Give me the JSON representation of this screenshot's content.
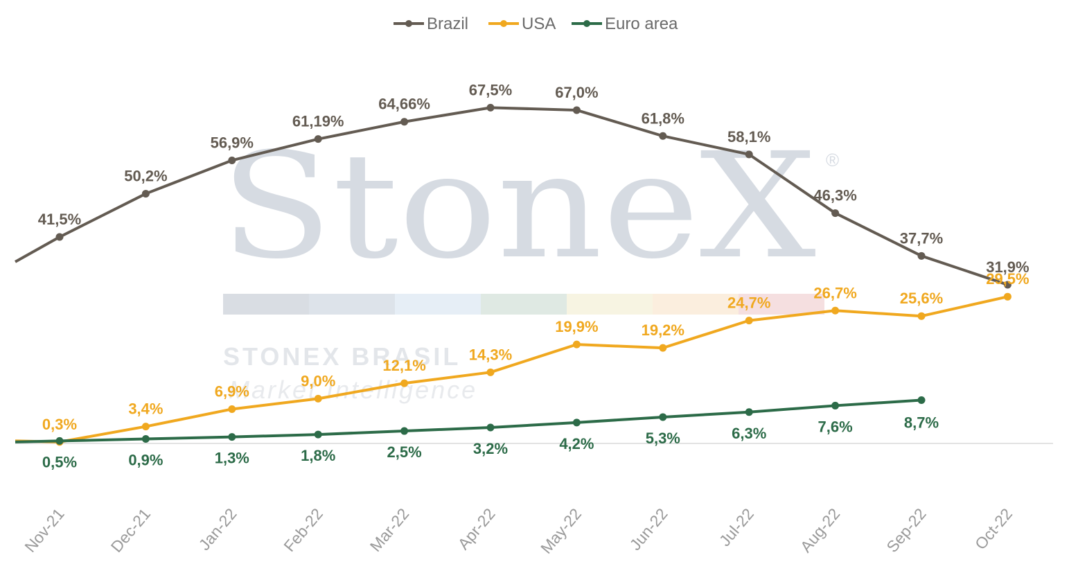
{
  "watermark": {
    "logo_text": "StoneX",
    "registered": "®",
    "line1": "STONEX BRASIL",
    "line2": "Market Intelligence",
    "band_colors": [
      "#d9dde3",
      "#dde3ea",
      "#e6eef6",
      "#dfe9e3",
      "#f7f4e2",
      "#fbeede",
      "#f5dfe0"
    ]
  },
  "chart_data": {
    "type": "line",
    "categories": [
      "Nov-21",
      "Dec-21",
      "Jan-22",
      "Feb-22",
      "Mar-22",
      "Apr-22",
      "May-22",
      "Jun-22",
      "Jul-22",
      "Aug-22",
      "Sep-22",
      "Oct-22"
    ],
    "legend_position": "top-center",
    "grid": false,
    "series": [
      {
        "name": "Brazil",
        "color": "#635b52",
        "values": [
          41.5,
          50.2,
          56.9,
          61.19,
          64.66,
          67.5,
          67.0,
          61.8,
          58.1,
          46.3,
          37.7,
          31.9
        ],
        "labels": [
          "41,5%",
          "50,2%",
          "56,9%",
          "61,19%",
          "64,66%",
          "67,5%",
          "67,0%",
          "61,8%",
          "58,1%",
          "46,3%",
          "37,7%",
          "31,9%"
        ],
        "leading_value": 36.5
      },
      {
        "name": "USA",
        "color": "#f0a81f",
        "values": [
          0.3,
          3.4,
          6.9,
          9.0,
          12.1,
          14.3,
          19.9,
          19.2,
          24.7,
          26.7,
          25.6,
          29.5
        ],
        "labels": [
          "0,3%",
          "3,4%",
          "6,9%",
          "9,0%",
          "12,1%",
          "14,3%",
          "19,9%",
          "19,2%",
          "24,7%",
          "26,7%",
          "25,6%",
          "29,5%"
        ],
        "leading_value": 0.5
      },
      {
        "name": "Euro area",
        "color": "#2c6b48",
        "values": [
          0.5,
          0.9,
          1.3,
          1.8,
          2.5,
          3.2,
          4.2,
          5.3,
          6.3,
          7.6,
          8.7,
          null
        ],
        "labels": [
          "0,5%",
          "0,9%",
          "1,3%",
          "1,8%",
          "2,5%",
          "3,2%",
          "4,2%",
          "5,3%",
          "6,3%",
          "7,6%",
          "8,7%",
          ""
        ],
        "leading_value": 0.3
      }
    ]
  }
}
